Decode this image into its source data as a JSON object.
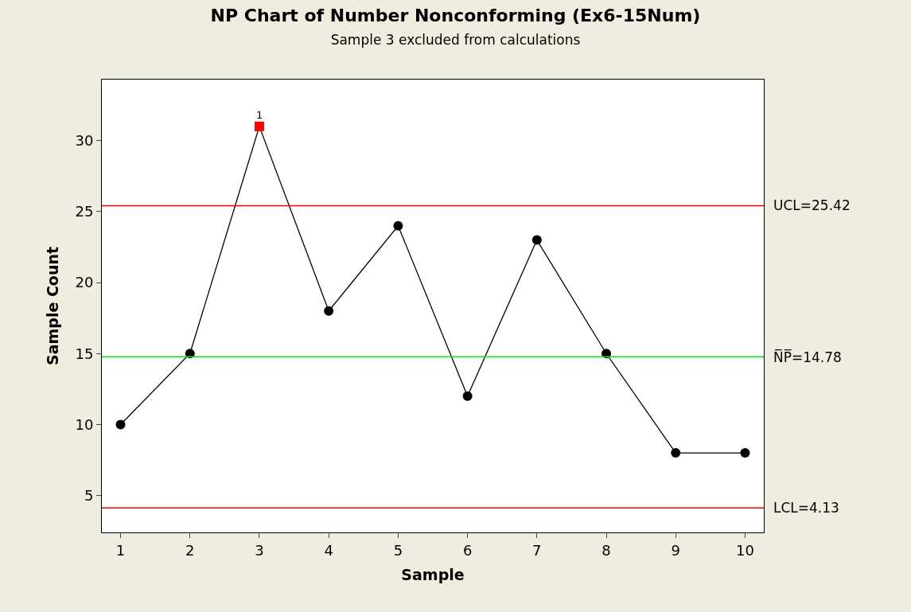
{
  "chart_data": {
    "type": "line",
    "title": "NP Chart of Number Nonconforming (Ex6-15Num)",
    "subtitle": "Sample 3 excluded from calculations",
    "xlabel": "Sample",
    "ylabel": "Sample Count",
    "x": [
      1,
      2,
      3,
      4,
      5,
      6,
      7,
      8,
      9,
      10
    ],
    "series": [
      {
        "color": "#000000",
        "marker": "none",
        "values": [
          10,
          15,
          31,
          18,
          24,
          12,
          23,
          15,
          8,
          8
        ]
      },
      {
        "type": "scatter",
        "color": "#000000",
        "marker": "circle",
        "values": [
          10,
          15,
          null,
          18,
          24,
          12,
          23,
          15,
          8,
          8
        ]
      },
      {
        "type": "scatter",
        "color": "#ff0000",
        "marker": "square",
        "x": [
          3
        ],
        "values": [
          31
        ]
      }
    ],
    "annotations": [
      {
        "text": "1",
        "x": 3,
        "y": 31
      }
    ],
    "ref_lines": [
      {
        "axis": "y",
        "value": 25.42,
        "label": "UCL=25.42",
        "color": "#ff0000"
      },
      {
        "axis": "y",
        "value": 14.78,
        "label": "N̅P̅=14.78",
        "color": "#00ee00"
      },
      {
        "axis": "y",
        "value": 4.13,
        "label": "LCL=4.13",
        "color": "#ff0000"
      }
    ],
    "xlim": [
      0.73,
      10.27
    ],
    "xticks": [
      1,
      2,
      3,
      4,
      5,
      6,
      7,
      8,
      9,
      10
    ],
    "ylim": [
      2.4,
      34.3
    ],
    "yticks": [
      5,
      10,
      15,
      20,
      25,
      30
    ]
  }
}
